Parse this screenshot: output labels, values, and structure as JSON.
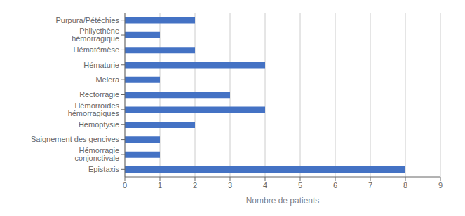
{
  "chart_data": {
    "type": "bar",
    "orientation": "horizontal",
    "categories": [
      "Epistaxis",
      "Hémorragie conjonctivale",
      "Saignement des gencives",
      "Hemoptysie",
      "Hémorroïdes hémorragiques",
      "Rectorragie",
      "Melera",
      "Hématurie",
      "Hématémèse",
      "Philycthène hémorragique",
      "Purpura/Pétéchies"
    ],
    "values": [
      8,
      1,
      1,
      2,
      4,
      3,
      1,
      4,
      2,
      1,
      2
    ],
    "color": "#4472C4",
    "xlabel": "Nombre de patients",
    "xlim": [
      0,
      9
    ],
    "xticks": [
      0,
      1,
      2,
      3,
      4,
      5,
      6,
      7,
      8,
      9
    ],
    "grid": true
  }
}
